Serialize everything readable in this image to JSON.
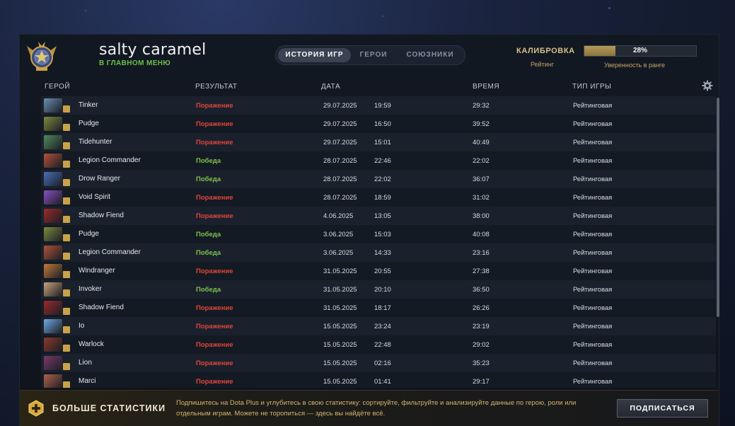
{
  "header": {
    "player_name": "salty caramel",
    "player_status": "В ГЛАВНОМ МЕНЮ",
    "tabs": [
      {
        "label": "ИСТОРИЯ ИГР",
        "active": true
      },
      {
        "label": "ГЕРОИ",
        "active": false
      },
      {
        "label": "СОЮЗНИКИ",
        "active": false
      }
    ],
    "calibration": {
      "title": "КАЛИБРОВКА",
      "progress_pct": 28,
      "progress_label": "28%",
      "rating_label": "Рейтинг",
      "confidence_label": "Уверенность в ранге"
    }
  },
  "table": {
    "columns": {
      "hero": "ГЕРОЙ",
      "result": "РЕЗУЛЬТАТ",
      "date": "ДАТА",
      "duration": "ВРЕМЯ",
      "mode": "ТИП ИГРЫ"
    },
    "settings_icon": "gear-icon",
    "rows": [
      {
        "hero": "Tinker",
        "result": "Поражение",
        "win": false,
        "date": "29.07.2025",
        "time": "19:59",
        "duration": "29:32",
        "mode": "Рейтинговая",
        "color": "#6b8fb0"
      },
      {
        "hero": "Pudge",
        "result": "Поражение",
        "win": false,
        "date": "29.07.2025",
        "time": "16:50",
        "duration": "39:52",
        "mode": "Рейтинговая",
        "color": "#7d8a3e"
      },
      {
        "hero": "Tidehunter",
        "result": "Поражение",
        "win": false,
        "date": "29.07.2025",
        "time": "15:01",
        "duration": "40:49",
        "mode": "Рейтинговая",
        "color": "#4f8a5a"
      },
      {
        "hero": "Legion Commander",
        "result": "Победа",
        "win": true,
        "date": "28.07.2025",
        "time": "22:46",
        "duration": "22:02",
        "mode": "Рейтинговая",
        "color": "#b0523a"
      },
      {
        "hero": "Drow Ranger",
        "result": "Победа",
        "win": true,
        "date": "28.07.2025",
        "time": "22:02",
        "duration": "36:07",
        "mode": "Рейтинговая",
        "color": "#4a6fb8"
      },
      {
        "hero": "Void Spirit",
        "result": "Поражение",
        "win": false,
        "date": "28.07.2025",
        "time": "18:59",
        "duration": "31:02",
        "mode": "Рейтинговая",
        "color": "#8a4fc0"
      },
      {
        "hero": "Shadow Fiend",
        "result": "Поражение",
        "win": false,
        "date": "4.06.2025",
        "time": "13:05",
        "duration": "38:00",
        "mode": "Рейтинговая",
        "color": "#9a2a2a"
      },
      {
        "hero": "Pudge",
        "result": "Победа",
        "win": true,
        "date": "3.06.2025",
        "time": "15:03",
        "duration": "40:08",
        "mode": "Рейтинговая",
        "color": "#7d8a3e"
      },
      {
        "hero": "Legion Commander",
        "result": "Победа",
        "win": true,
        "date": "3.06.2025",
        "time": "14:33",
        "duration": "23:16",
        "mode": "Рейтинговая",
        "color": "#b0523a"
      },
      {
        "hero": "Windranger",
        "result": "Поражение",
        "win": false,
        "date": "31.05.2025",
        "time": "20:55",
        "duration": "27:38",
        "mode": "Рейтинговая",
        "color": "#c07a3a"
      },
      {
        "hero": "Invoker",
        "result": "Победа",
        "win": true,
        "date": "31.05.2025",
        "time": "20:10",
        "duration": "36:50",
        "mode": "Рейтинговая",
        "color": "#c9a27a"
      },
      {
        "hero": "Shadow Fiend",
        "result": "Поражение",
        "win": false,
        "date": "31.05.2025",
        "time": "18:17",
        "duration": "26:26",
        "mode": "Рейтинговая",
        "color": "#9a2a2a"
      },
      {
        "hero": "Io",
        "result": "Поражение",
        "win": false,
        "date": "15.05.2025",
        "time": "23:24",
        "duration": "23:19",
        "mode": "Рейтинговая",
        "color": "#6fa8e0"
      },
      {
        "hero": "Warlock",
        "result": "Поражение",
        "win": false,
        "date": "15.05.2025",
        "time": "22:48",
        "duration": "29:02",
        "mode": "Рейтинговая",
        "color": "#8a3a2a"
      },
      {
        "hero": "Lion",
        "result": "Поражение",
        "win": false,
        "date": "15.05.2025",
        "time": "02:16",
        "duration": "35:23",
        "mode": "Рейтинговая",
        "color": "#7a3a6a"
      },
      {
        "hero": "Marci",
        "result": "Поражение",
        "win": false,
        "date": "15.05.2025",
        "time": "01:41",
        "duration": "29:17",
        "mode": "Рейтинговая",
        "color": "#b0604a"
      }
    ]
  },
  "promo": {
    "title": "БОЛЬШЕ СТАТИСТИКИ",
    "text": "Подпишитесь на Dota Plus и углубитесь в свою статистику: сортируйте, фильтруйте и анализируйте данные по герою, роли или отдельным играм. Можете не торопиться — здесь вы найдёте всё.",
    "button_label": "ПОДПИСАТЬСЯ"
  },
  "colors": {
    "win": "#7fc24a",
    "loss": "#e0453a",
    "accent_gold": "#d7c08a"
  }
}
